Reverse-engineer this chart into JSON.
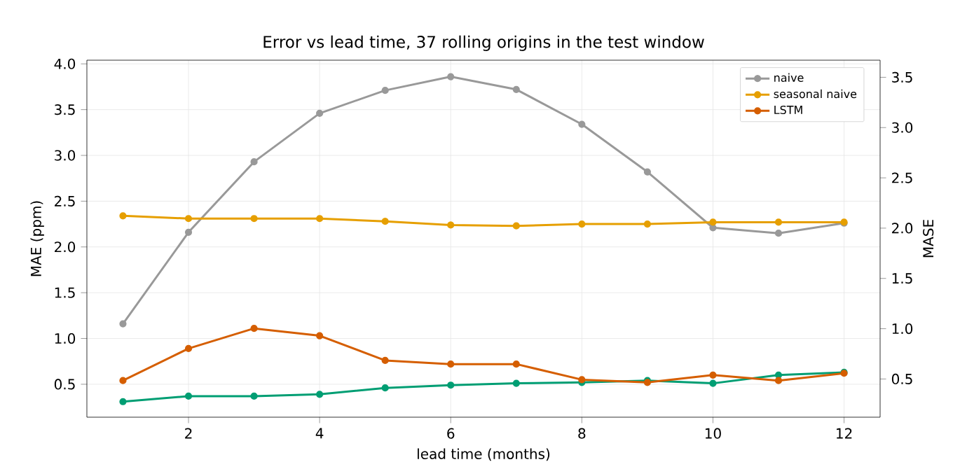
{
  "chart_data": {
    "type": "line",
    "title": "Error vs lead time, 37 rolling origins in the test window",
    "xlabel": "lead time (months)",
    "ylabel": "MAE (ppm)",
    "y2label": "MASE",
    "x": [
      1,
      2,
      3,
      4,
      5,
      6,
      7,
      8,
      9,
      10,
      11,
      12
    ],
    "series": [
      {
        "name": "naive",
        "color": "#999999",
        "values": [
          1.16,
          2.16,
          2.93,
          3.46,
          3.71,
          3.86,
          3.72,
          3.34,
          2.82,
          2.21,
          2.15,
          2.26
        ]
      },
      {
        "name": "seasonal naive",
        "color": "#e69f00",
        "values": [
          2.34,
          2.31,
          2.31,
          2.31,
          2.28,
          2.24,
          2.23,
          2.25,
          2.25,
          2.27,
          2.27,
          2.27
        ]
      },
      {
        "color": "#009e73",
        "values": [
          0.31,
          0.37,
          0.37,
          0.39,
          0.46,
          0.49,
          0.51,
          0.52,
          0.54,
          0.51,
          0.6,
          0.63
        ]
      },
      {
        "name": "LSTM",
        "color": "#d55e00",
        "values": [
          0.54,
          0.89,
          1.11,
          1.03,
          0.76,
          0.72,
          0.72,
          0.55,
          0.52,
          0.6,
          0.54,
          0.62
        ]
      }
    ],
    "xlim": [
      0.45,
      12.55
    ],
    "xticks": [
      2,
      4,
      6,
      8,
      10,
      12
    ],
    "ylim": [
      0.14,
      4.04
    ],
    "yticks": [
      0.5,
      {
        "value": 1,
        "label": "1.0"
      },
      1.5,
      {
        "value": 2,
        "label": "2.0"
      },
      2.5,
      {
        "value": 3,
        "label": "3.0"
      },
      3.5,
      {
        "value": 4,
        "label": "4.0"
      }
    ],
    "y2lim": [
      0.12,
      3.67
    ],
    "y2ticks": [
      0.5,
      {
        "value": 1,
        "label": "1.0"
      },
      1.5,
      {
        "value": 2,
        "label": "2.0"
      },
      2.5,
      {
        "value": 3,
        "label": "3.0"
      },
      3.5
    ],
    "grid": true,
    "legend": "top right",
    "marker": "circle",
    "line_style": "solid"
  }
}
